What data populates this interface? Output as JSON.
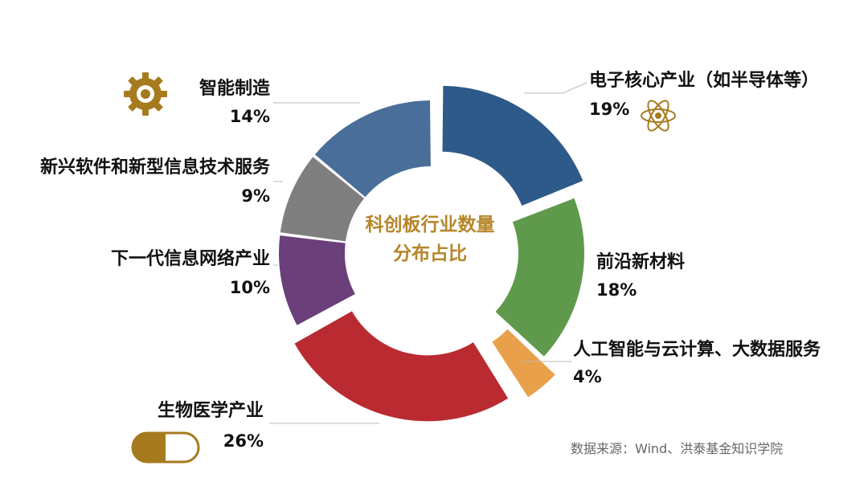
{
  "chart_data": {
    "type": "pie",
    "variant": "donut",
    "title_lines": [
      "科创板行业数量",
      "分布占比"
    ],
    "slices": [
      {
        "label": "电子核心产业（如半导体等）",
        "value": 19,
        "value_label": "19%",
        "color": "#2e5a8a"
      },
      {
        "label": "前沿新材料",
        "value": 18,
        "value_label": "18%",
        "color": "#5f9a4c"
      },
      {
        "label": "人工智能与云计算、大数据服务",
        "value": 4,
        "value_label": "4%",
        "color": "#e8a04a"
      },
      {
        "label": "生物医学产业",
        "value": 26,
        "value_label": "26%",
        "color": "#b92b30"
      },
      {
        "label": "下一代信息网络产业",
        "value": 10,
        "value_label": "10%",
        "color": "#6b3f7a"
      },
      {
        "label": "新兴软件和新型信息技术服务",
        "value": 9,
        "value_label": "9%",
        "color": "#7f7f7f"
      },
      {
        "label": "智能制造",
        "value": 14,
        "value_label": "14%",
        "color": "#4a6e9a"
      }
    ]
  },
  "center_color": "#b5862a",
  "source": "数据来源：Wind、洪泰基金知识学院",
  "icons": {
    "manufacturing": "gear-icon",
    "electronics": "atom-icon",
    "biomed": "capsule-icon"
  },
  "icon_color": "#a67a1e"
}
